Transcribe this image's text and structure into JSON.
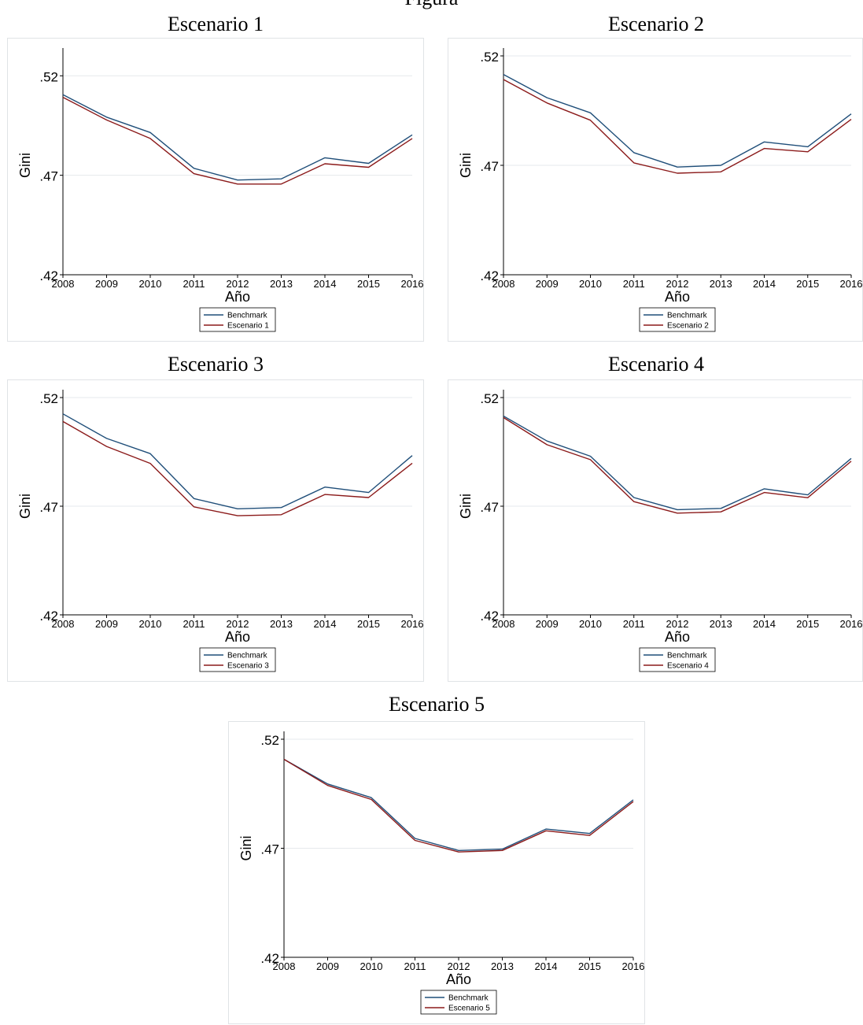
{
  "page": {
    "top_title": "Figura"
  },
  "colors": {
    "benchmark": "#1f4e79",
    "scenario": "#8b1a1a",
    "grid": "#e6e9ec",
    "axis": "#000000"
  },
  "chart_data": [
    {
      "type": "line",
      "title": "Escenario 1",
      "xlabel": "Año",
      "ylabel": "Gini",
      "x": [
        2008,
        2009,
        2010,
        2011,
        2012,
        2013,
        2014,
        2015,
        2016
      ],
      "ylim": [
        0.42,
        0.53
      ],
      "yticks": [
        ".52",
        ".47",
        ".42"
      ],
      "ytick_values": [
        0.52,
        0.47,
        0.42
      ],
      "grid": true,
      "legend_position": "bottom",
      "series": [
        {
          "name": "Benchmark",
          "values": [
            0.5105,
            0.4992,
            0.4915,
            0.4735,
            0.4676,
            0.4682,
            0.4788,
            0.476,
            0.4903
          ]
        },
        {
          "name": "Escenario 1",
          "values": [
            0.5092,
            0.4978,
            0.4885,
            0.4708,
            0.4656,
            0.4656,
            0.4758,
            0.474,
            0.4885
          ]
        }
      ]
    },
    {
      "type": "line",
      "title": "Escenario 2",
      "xlabel": "Año",
      "ylabel": "Gini",
      "x": [
        2008,
        2009,
        2010,
        2011,
        2012,
        2013,
        2014,
        2015,
        2016
      ],
      "ylim": [
        0.42,
        0.52
      ],
      "yticks": [
        ".52",
        ".47",
        ".42"
      ],
      "ytick_values": [
        0.52,
        0.47,
        0.42
      ],
      "grid": true,
      "legend_position": "bottom",
      "series": [
        {
          "name": "Benchmark",
          "values": [
            0.5115,
            0.5009,
            0.494,
            0.4758,
            0.4692,
            0.47,
            0.4807,
            0.4785,
            0.4935
          ]
        },
        {
          "name": "Escenario 2",
          "values": [
            0.5092,
            0.4985,
            0.4906,
            0.4711,
            0.4664,
            0.467,
            0.4777,
            0.4762,
            0.491
          ]
        }
      ]
    },
    {
      "type": "line",
      "title": "Escenario 3",
      "xlabel": "Año",
      "ylabel": "Gini",
      "x": [
        2008,
        2009,
        2010,
        2011,
        2012,
        2013,
        2014,
        2015,
        2016
      ],
      "ylim": [
        0.42,
        0.52
      ],
      "yticks": [
        ".52",
        ".47",
        ".42"
      ],
      "ytick_values": [
        0.52,
        0.47,
        0.42
      ],
      "grid": true,
      "legend_position": "bottom",
      "series": [
        {
          "name": "Benchmark",
          "values": [
            0.5125,
            0.5012,
            0.4942,
            0.4735,
            0.4688,
            0.4694,
            0.4788,
            0.4763,
            0.4933
          ]
        },
        {
          "name": "Escenario 3",
          "values": [
            0.509,
            0.4975,
            0.4897,
            0.4697,
            0.4656,
            0.4661,
            0.4754,
            0.474,
            0.4898
          ]
        }
      ]
    },
    {
      "type": "line",
      "title": "Escenario 4",
      "xlabel": "Año",
      "ylabel": "Gini",
      "x": [
        2008,
        2009,
        2010,
        2011,
        2012,
        2013,
        2014,
        2015,
        2016
      ],
      "ylim": [
        0.42,
        0.52
      ],
      "yticks": [
        ".52",
        ".47",
        ".42"
      ],
      "ytick_values": [
        0.52,
        0.47,
        0.42
      ],
      "grid": true,
      "legend_position": "bottom",
      "series": [
        {
          "name": "Benchmark",
          "values": [
            0.5115,
            0.5,
            0.493,
            0.474,
            0.4684,
            0.469,
            0.478,
            0.4752,
            0.492
          ]
        },
        {
          "name": "Escenario 4",
          "values": [
            0.5108,
            0.4983,
            0.4914,
            0.4721,
            0.4668,
            0.4674,
            0.4763,
            0.4739,
            0.4907
          ]
        }
      ]
    },
    {
      "type": "line",
      "title": "Escenario 5",
      "xlabel": "Año",
      "ylabel": "Gini",
      "x": [
        2008,
        2009,
        2010,
        2011,
        2012,
        2013,
        2014,
        2015,
        2016
      ],
      "ylim": [
        0.42,
        0.52
      ],
      "yticks": [
        ".52",
        ".47",
        ".42"
      ],
      "ytick_values": [
        0.52,
        0.47,
        0.42
      ],
      "grid": true,
      "legend_position": "bottom",
      "series": [
        {
          "name": "Benchmark",
          "values": [
            0.5108,
            0.4995,
            0.4932,
            0.4745,
            0.469,
            0.4696,
            0.4788,
            0.4768,
            0.4922
          ]
        },
        {
          "name": "Escenario 5",
          "values": [
            0.5108,
            0.4988,
            0.4924,
            0.4736,
            0.4683,
            0.469,
            0.478,
            0.4759,
            0.4914
          ]
        }
      ]
    }
  ]
}
